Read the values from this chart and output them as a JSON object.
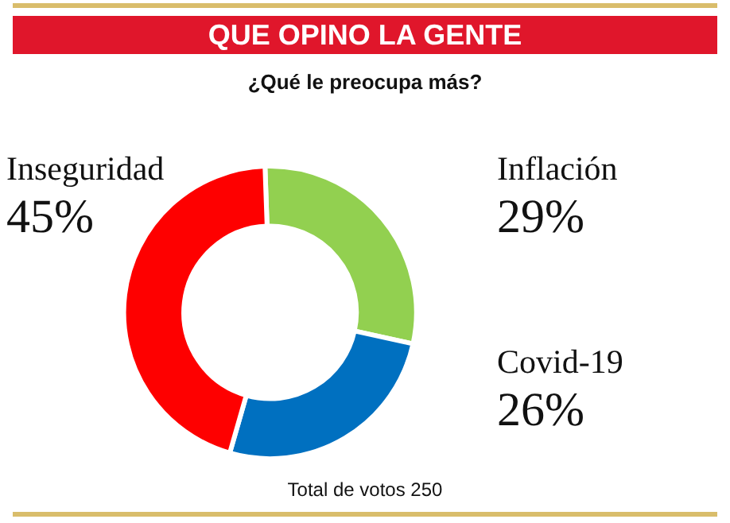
{
  "chart_data": {
    "type": "donut",
    "title": "QUE OPINO LA GENTE",
    "subtitle": "¿Qué le preocupa más?",
    "categories": [
      "Inflación",
      "Covid-19",
      "Inseguridad"
    ],
    "values": [
      29,
      26,
      45
    ],
    "colors": [
      "#92d050",
      "#0070c0",
      "#fe0000"
    ],
    "value_labels": [
      "29%",
      "26%",
      "45%"
    ],
    "legend": false,
    "annotations": [
      "Total de votos 250"
    ]
  }
}
